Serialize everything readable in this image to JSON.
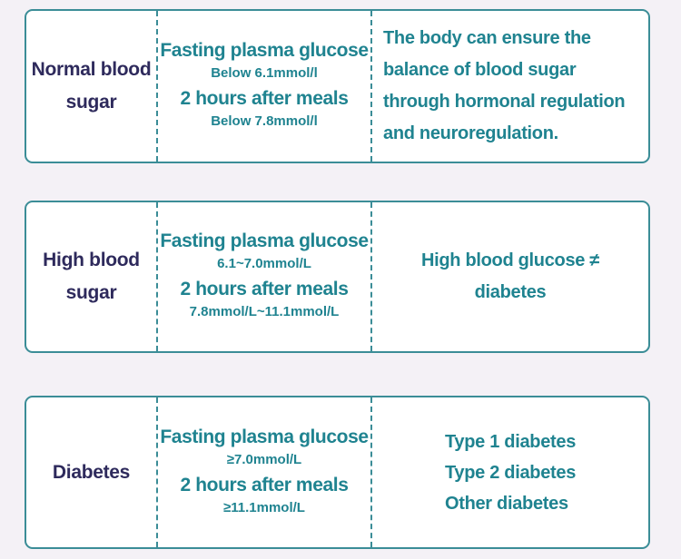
{
  "rows": [
    {
      "name": "Normal blood\nsugar",
      "fasting_label": "Fasting plasma glucose",
      "fasting_value": "Below 6.1mmol/l",
      "after_label": "2 hours after meals",
      "after_value": "Below 7.8mmol/l",
      "note": "The body can ensure the balance of blood sugar through hormonal regulation and neuroregulation."
    },
    {
      "name": "High blood\nsugar",
      "fasting_label": "Fasting plasma glucose",
      "fasting_value": "6.1~7.0mmol/L",
      "after_label": "2 hours after meals",
      "after_value": "7.8mmol/L~11.1mmol/L",
      "note": "High blood glucose ≠ diabetes"
    },
    {
      "name": "Diabetes",
      "fasting_label": "Fasting plasma glucose",
      "fasting_value": "≥7.0mmol/L",
      "after_label": "2 hours after meals",
      "after_value": "≥11.1mmol/L",
      "types": [
        "Type 1 diabetes",
        "Type 2 diabetes",
        "Other diabetes"
      ]
    }
  ],
  "colors": {
    "border": "#3b8d97",
    "teal_text": "#1f8390",
    "name_text": "#2e2a5c",
    "background": "#f4f1f6"
  }
}
